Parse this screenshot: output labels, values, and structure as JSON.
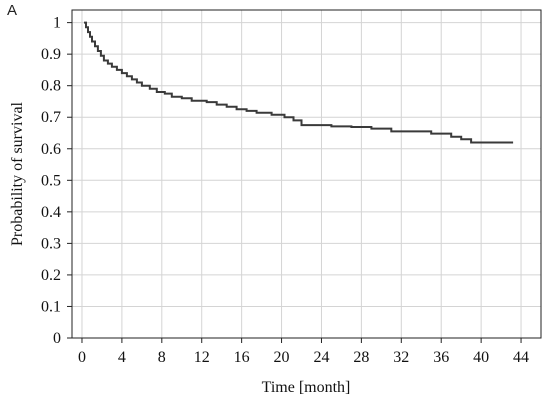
{
  "panel_label": "A",
  "chart_data": {
    "type": "line",
    "step": true,
    "xlabel": "Time [month]",
    "ylabel": "Probability of survival",
    "xlim": [
      -1,
      46
    ],
    "ylim": [
      0,
      1.04
    ],
    "xticks": [
      0,
      4,
      8,
      12,
      16,
      20,
      24,
      28,
      32,
      36,
      40,
      44
    ],
    "yticks": [
      0,
      0.1,
      0.2,
      0.3,
      0.4,
      0.5,
      0.6,
      0.7,
      0.8,
      0.9,
      1
    ],
    "grid": true,
    "line_color": "#3a3a3a",
    "grid_color": "#d4d4d4",
    "series": [
      {
        "x": [
          0.2,
          0.4,
          0.6,
          0.8,
          1.0,
          1.3,
          1.6,
          1.9,
          2.2,
          2.6,
          3.0,
          3.5,
          4.0,
          4.5,
          5.0,
          5.5,
          6.0,
          6.8,
          7.5,
          8.3,
          9.0,
          10.0,
          11.0,
          12.5,
          13.5,
          14.5,
          15.5,
          16.5,
          17.5,
          19.0,
          20.3,
          21.2,
          22.0,
          25.0,
          27.0,
          29.0,
          31.0,
          35.0,
          37.0,
          38.0,
          39.0,
          43.2
        ],
        "y": [
          1.0,
          0.985,
          0.97,
          0.955,
          0.94,
          0.925,
          0.91,
          0.895,
          0.88,
          0.87,
          0.86,
          0.85,
          0.84,
          0.83,
          0.82,
          0.81,
          0.8,
          0.79,
          0.78,
          0.775,
          0.765,
          0.76,
          0.752,
          0.748,
          0.74,
          0.733,
          0.725,
          0.72,
          0.714,
          0.708,
          0.7,
          0.69,
          0.675,
          0.671,
          0.669,
          0.664,
          0.655,
          0.648,
          0.638,
          0.63,
          0.62,
          0.62
        ]
      }
    ]
  }
}
